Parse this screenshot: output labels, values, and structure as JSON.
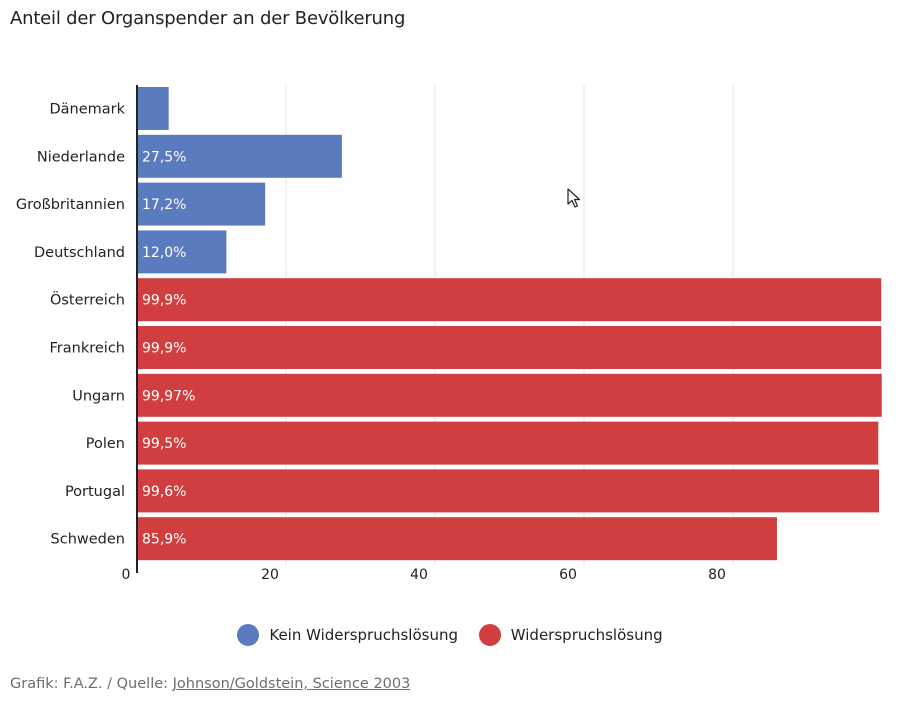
{
  "header": {
    "title": "Anteil der Organspender an der Bevölkerung"
  },
  "chart_data": {
    "type": "bar",
    "orientation": "horizontal",
    "title": "Anteil der Organspender an der Bevölkerung",
    "categories": [
      "Dänemark",
      "Niederlande",
      "Großbritannien",
      "Deutschland",
      "Österreich",
      "Frankreich",
      "Ungarn",
      "Polen",
      "Portugal",
      "Schweden"
    ],
    "values": [
      4.25,
      27.5,
      17.2,
      12.0,
      99.9,
      99.9,
      99.97,
      99.5,
      99.6,
      85.9
    ],
    "labels": [
      "",
      "27,5%",
      "17,2%",
      "12,0%",
      "99,9%",
      "99,9%",
      "99,97%",
      "99,5%",
      "99,6%",
      "85,9%"
    ],
    "groups": [
      0,
      0,
      0,
      0,
      1,
      1,
      1,
      1,
      1,
      1
    ],
    "x_ticks": [
      0,
      20,
      40,
      60,
      80
    ],
    "x_tick_labels": [
      "0",
      "20",
      "40",
      "60",
      "80"
    ],
    "xlim": [
      0,
      100
    ],
    "grid": true,
    "xlabel": "",
    "ylabel": ""
  },
  "legend": [
    {
      "label": "Kein Widerspruchslösung",
      "color": "#5a7cbe"
    },
    {
      "label": "Widerspruchslösung",
      "color": "#d13e3f"
    }
  ],
  "footer": {
    "prefix": "Grafik: F.A.Z. / Quelle: ",
    "link_text": "Johnson/Goldstein, Science 2003"
  }
}
